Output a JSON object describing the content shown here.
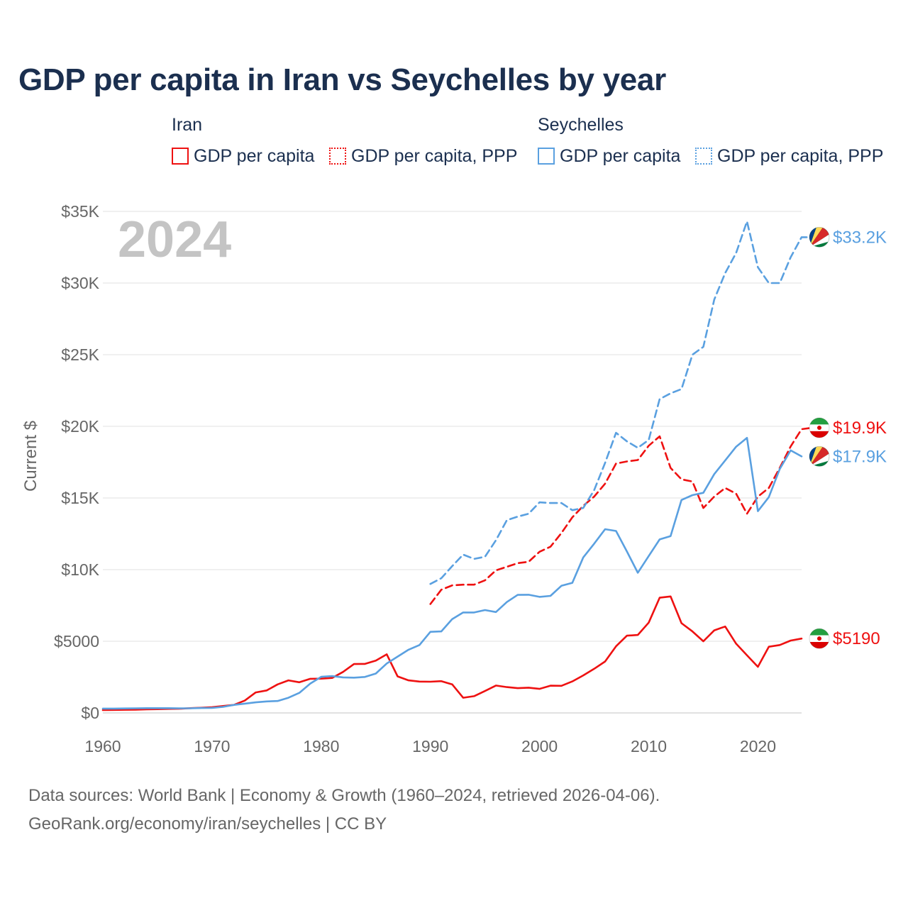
{
  "title": "GDP per capita in Iran vs Seychelles by year",
  "legend": {
    "iran": {
      "title": "Iran",
      "gdp": "GDP per capita",
      "ppp": "GDP per capita, PPP"
    },
    "seychelles": {
      "title": "Seychelles",
      "gdp": "GDP per capita",
      "ppp": "GDP per capita, PPP"
    }
  },
  "year_watermark": "2024",
  "footer": {
    "source": "Data sources: World Bank | Economy & Growth (1960–2024, retrieved 2026-04-06).",
    "credit": "GeoRank.org/economy/iran/seychelles | CC BY"
  },
  "colors": {
    "iran": "#ee1111",
    "seychelles": "#5aa0e0",
    "grid": "#e6e6e6",
    "axis_text": "#666666",
    "title": "#1b2f4f"
  },
  "chart_data": {
    "type": "line",
    "title": "GDP per capita in Iran vs Seychelles by year",
    "xlabel": "",
    "ylabel": "Current $",
    "xlim": [
      1960,
      2024
    ],
    "ylim": [
      0,
      35000
    ],
    "x_ticks": [
      1960,
      1970,
      1980,
      1990,
      2000,
      2010,
      2020
    ],
    "x_tick_labels": [
      "1960",
      "1970",
      "1980",
      "1990",
      "2000",
      "2010",
      "2020"
    ],
    "y_ticks": [
      0,
      5000,
      10000,
      15000,
      20000,
      25000,
      30000,
      35000
    ],
    "y_tick_labels": [
      "$0",
      "$5000",
      "$10K",
      "$15K",
      "$20K",
      "$25K",
      "$30K",
      "$35K"
    ],
    "series": [
      {
        "name": "Iran GDP per capita",
        "country": "iran",
        "style": "solid",
        "start_year": 1960,
        "values": [
          200,
          210,
          220,
          230,
          250,
          260,
          280,
          290,
          330,
          360,
          400,
          480,
          560,
          860,
          1430,
          1570,
          1990,
          2270,
          2140,
          2380,
          2390,
          2440,
          2860,
          3410,
          3420,
          3650,
          4090,
          2550,
          2270,
          2190,
          2180,
          2220,
          1990,
          1060,
          1170,
          1530,
          1910,
          1800,
          1730,
          1760,
          1680,
          1900,
          1890,
          2200,
          2620,
          3080,
          3590,
          4650,
          5390,
          5440,
          6300,
          8040,
          8130,
          6260,
          5690,
          5000,
          5760,
          6030,
          4830,
          4020,
          3220,
          4620,
          4740,
          5050,
          5190
        ],
        "end_label": "$5190"
      },
      {
        "name": "Iran GDP per capita, PPP",
        "country": "iran",
        "style": "dashed",
        "start_year": 1990,
        "values": [
          7600,
          8600,
          8900,
          8950,
          8950,
          9250,
          9950,
          10200,
          10450,
          10550,
          11250,
          11600,
          12550,
          13650,
          14450,
          15100,
          16000,
          17400,
          17550,
          17650,
          18650,
          19300,
          17100,
          16300,
          16150,
          14300,
          15100,
          15700,
          15300,
          13900,
          15100,
          15700,
          17100,
          18600,
          19800,
          19900
        ],
        "end_label": "$19.9K"
      },
      {
        "name": "Seychelles GDP per capita",
        "country": "seychelles",
        "style": "solid",
        "start_year": 1960,
        "values": [
          300,
          300,
          310,
          320,
          330,
          330,
          330,
          320,
          320,
          340,
          350,
          420,
          560,
          650,
          740,
          800,
          830,
          1060,
          1400,
          2050,
          2520,
          2570,
          2480,
          2460,
          2510,
          2750,
          3450,
          3930,
          4410,
          4740,
          5660,
          5690,
          6550,
          7010,
          7010,
          7180,
          7040,
          7740,
          8240,
          8250,
          8100,
          8170,
          8870,
          9080,
          10850,
          11810,
          12820,
          12700,
          11260,
          9780,
          10950,
          12110,
          12340,
          14860,
          15200,
          15360,
          16670,
          17620,
          18580,
          19200,
          14080,
          15060,
          17020,
          18320,
          17900
        ],
        "end_label": "$17.9K"
      },
      {
        "name": "Seychelles GDP per capita, PPP",
        "country": "seychelles",
        "style": "dashed",
        "start_year": 1990,
        "values": [
          9000,
          9400,
          10250,
          11050,
          10750,
          10900,
          12050,
          13450,
          13700,
          13900,
          14700,
          14650,
          14650,
          14150,
          14300,
          15550,
          17450,
          19550,
          18950,
          18500,
          19050,
          21900,
          22300,
          22600,
          25000,
          25550,
          28850,
          30700,
          32100,
          34300,
          31100,
          30000,
          30000,
          31800,
          33200,
          33200
        ],
        "end_label": "$33.2K"
      }
    ]
  }
}
